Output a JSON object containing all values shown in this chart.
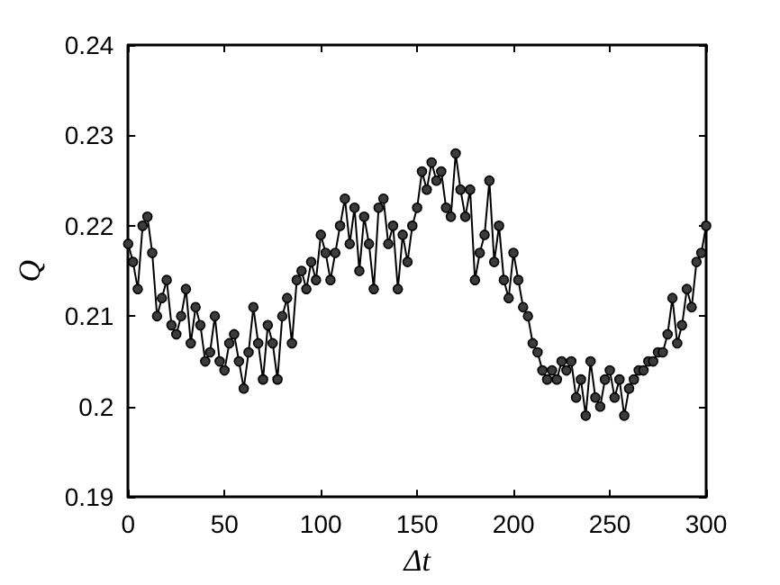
{
  "chart_data": {
    "type": "line",
    "xlabel": "Δt",
    "ylabel": "Q",
    "marker": "circle",
    "line_style": "solid",
    "grid": false,
    "xlim": [
      0,
      300
    ],
    "xticks": [
      0,
      50,
      100,
      150,
      200,
      250,
      300
    ],
    "ylim": [
      0.19,
      0.24
    ],
    "yticks": [
      0.19,
      0.2,
      0.21,
      0.22,
      0.23,
      0.24
    ],
    "series": [
      {
        "color": "#3c3c3c",
        "x": [
          0,
          2.5,
          5,
          7.5,
          10,
          12.5,
          15,
          17.5,
          20,
          22.5,
          25,
          27.5,
          30,
          32.5,
          35,
          37.5,
          40,
          42.5,
          45,
          47.5,
          50,
          52.5,
          55,
          57.5,
          60,
          62.5,
          65,
          67.5,
          70,
          72.5,
          75,
          77.5,
          80,
          82.5,
          85,
          87.5,
          90,
          92.5,
          95,
          97.5,
          100,
          102.5,
          105,
          107.5,
          110,
          112.5,
          115,
          117.5,
          120,
          122.5,
          125,
          127.5,
          130,
          132.5,
          135,
          137.5,
          140,
          142.5,
          145,
          147.5,
          150,
          152.5,
          155,
          157.5,
          160,
          162.5,
          165,
          167.5,
          170,
          172.5,
          175,
          177.5,
          180,
          182.5,
          185,
          187.5,
          190,
          192.5,
          195,
          197.5,
          200,
          202.5,
          205,
          207.5,
          210,
          212.5,
          215,
          217.5,
          220,
          222.5,
          225,
          227.5,
          230,
          232.5,
          235,
          237.5,
          240,
          242.5,
          245,
          247.5,
          250,
          252.5,
          255,
          257.5,
          260,
          262.5,
          265,
          267.5,
          270,
          272.5,
          275,
          277.5,
          280,
          282.5,
          285,
          287.5,
          290,
          292.5,
          295,
          297.5,
          300
        ],
        "values": [
          0.218,
          0.216,
          0.213,
          0.22,
          0.221,
          0.217,
          0.21,
          0.212,
          0.214,
          0.209,
          0.208,
          0.21,
          0.213,
          0.207,
          0.211,
          0.209,
          0.205,
          0.206,
          0.21,
          0.205,
          0.204,
          0.207,
          0.208,
          0.205,
          0.202,
          0.206,
          0.211,
          0.207,
          0.203,
          0.209,
          0.207,
          0.203,
          0.21,
          0.212,
          0.207,
          0.214,
          0.215,
          0.213,
          0.216,
          0.214,
          0.219,
          0.217,
          0.214,
          0.217,
          0.22,
          0.223,
          0.218,
          0.222,
          0.215,
          0.221,
          0.218,
          0.213,
          0.222,
          0.223,
          0.218,
          0.22,
          0.213,
          0.219,
          0.216,
          0.22,
          0.222,
          0.226,
          0.224,
          0.227,
          0.225,
          0.226,
          0.222,
          0.221,
          0.228,
          0.224,
          0.221,
          0.224,
          0.214,
          0.217,
          0.219,
          0.225,
          0.216,
          0.22,
          0.214,
          0.212,
          0.217,
          0.214,
          0.211,
          0.21,
          0.207,
          0.206,
          0.204,
          0.203,
          0.204,
          0.203,
          0.205,
          0.204,
          0.205,
          0.201,
          0.203,
          0.199,
          0.205,
          0.201,
          0.2,
          0.203,
          0.204,
          0.201,
          0.203,
          0.199,
          0.202,
          0.203,
          0.204,
          0.204,
          0.205,
          0.205,
          0.206,
          0.206,
          0.208,
          0.212,
          0.207,
          0.209,
          0.213,
          0.211,
          0.216,
          0.217,
          0.22
        ]
      }
    ]
  }
}
